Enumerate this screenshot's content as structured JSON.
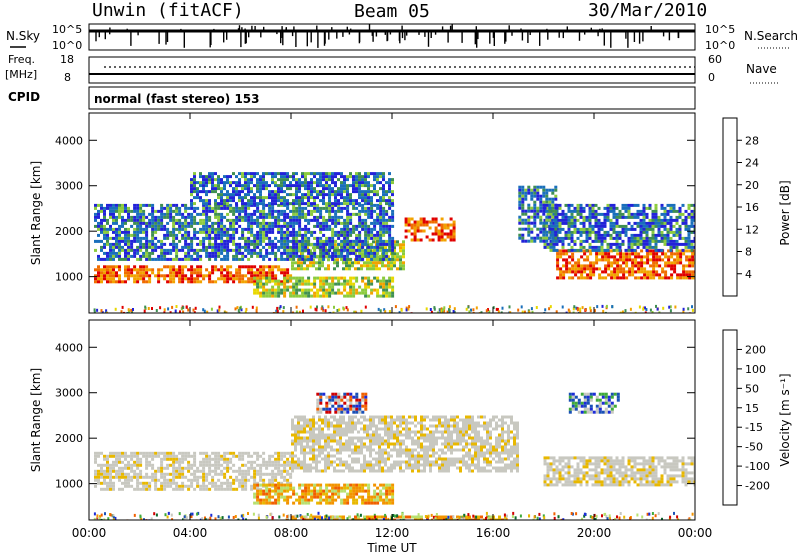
{
  "header": {
    "station": "Unwin (fitACF)",
    "beam": "Beam 05",
    "date": "30/Mar/2010"
  },
  "summary": {
    "nsky_label": "N.Sky",
    "nsky_ticks": [
      "10^5",
      "10^0"
    ],
    "nsearch_label": "N.Search",
    "freq_label": "Freq.",
    "freq_unit": "[MHz]",
    "freq_ticks": [
      "18",
      "8"
    ],
    "nave_label": "Nave",
    "nave_ticks": [
      "60",
      "0"
    ],
    "cpid_label": "CPID",
    "cpid_text": "normal (fast stereo) 153"
  },
  "colors": {
    "power": [
      "#2222d8",
      "#1a6fbb",
      "#3f8f52",
      "#8ccb3e",
      "#e8d800",
      "#f2a300",
      "#f06d00",
      "#e00000"
    ],
    "velocity": [
      "#d00000",
      "#f06000",
      "#f29400",
      "#e8b800",
      "#c8c8c0",
      "#b8e070",
      "#3faa3a",
      "#0c6b2f",
      "#1a50b5",
      "#1c2bd8"
    ]
  },
  "chart_data": [
    {
      "type": "heatmap",
      "panel": "power",
      "ylabel": "Slant Range [km]",
      "y_ticks": [
        1000,
        2000,
        3000,
        4000
      ],
      "ylim": [
        200,
        4600
      ],
      "xlim_hours": [
        0,
        24
      ],
      "x_ticks": [
        "00:00",
        "04:00",
        "08:00",
        "12:00",
        "16:00",
        "20:00",
        "00:00"
      ],
      "colorbar": {
        "label": "Power [dB]",
        "ticks": [
          "4",
          "8",
          "12",
          "16",
          "20",
          "24",
          "28"
        ],
        "range": [
          0,
          30
        ]
      },
      "bands": [
        {
          "t0": 0.2,
          "t1": 8.0,
          "r0": 900,
          "r1": 1250,
          "level": "high"
        },
        {
          "t0": 8.0,
          "t1": 12.5,
          "r0": 1200,
          "r1": 1800,
          "level": "medium"
        },
        {
          "t0": 12.5,
          "t1": 14.5,
          "r0": 1800,
          "r1": 2300,
          "level": "high"
        },
        {
          "t0": 6.5,
          "t1": 12.0,
          "r0": 550,
          "r1": 1000,
          "level": "medium"
        },
        {
          "t0": 0.2,
          "t1": 12.0,
          "r0": 1400,
          "r1": 2600,
          "level": "low"
        },
        {
          "t0": 4.0,
          "t1": 12.0,
          "r0": 2600,
          "r1": 3300,
          "level": "low"
        },
        {
          "t0": 18.5,
          "t1": 24.0,
          "r0": 1000,
          "r1": 1600,
          "level": "high"
        },
        {
          "t0": 18.0,
          "t1": 24.0,
          "r0": 1600,
          "r1": 2600,
          "level": "low"
        },
        {
          "t0": 17.0,
          "t1": 18.5,
          "r0": 1800,
          "r1": 3000,
          "level": "low"
        }
      ]
    },
    {
      "type": "heatmap",
      "panel": "velocity",
      "ylabel": "Slant Range [km]",
      "y_ticks": [
        1000,
        2000,
        3000,
        4000
      ],
      "ylim": [
        200,
        4600
      ],
      "xlim_hours": [
        0,
        24
      ],
      "x_ticks": [
        "00:00",
        "04:00",
        "08:00",
        "12:00",
        "16:00",
        "20:00",
        "00:00"
      ],
      "xlabel": "Time UT",
      "colorbar": {
        "label": "Velocity [m s⁻¹]",
        "ticks": [
          "-200",
          "-100",
          "-50",
          "-15",
          "15",
          "50",
          "100",
          "200"
        ],
        "range": [
          -250,
          250
        ]
      },
      "bands": [
        {
          "t0": 0.2,
          "t1": 8.0,
          "r0": 900,
          "r1": 1700,
          "level": "ground"
        },
        {
          "t0": 8.0,
          "t1": 17.0,
          "r0": 1300,
          "r1": 2500,
          "level": "ground"
        },
        {
          "t0": 18.0,
          "t1": 24.0,
          "r0": 1000,
          "r1": 1600,
          "level": "ground"
        },
        {
          "t0": 6.5,
          "t1": 12.0,
          "r0": 550,
          "r1": 1000,
          "level": "neg_medium"
        },
        {
          "t0": 8.0,
          "t1": 16.5,
          "r0": 200,
          "r1": 300,
          "level": "neg_medium"
        },
        {
          "t0": 9.0,
          "t1": 11.0,
          "r0": 2600,
          "r1": 3000,
          "level": "mixed"
        },
        {
          "t0": 19.0,
          "t1": 21.0,
          "r0": 2600,
          "r1": 3000,
          "level": "pos_high"
        }
      ]
    }
  ]
}
